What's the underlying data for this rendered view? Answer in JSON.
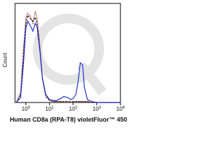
{
  "chart_data": {
    "type": "line",
    "x_label": "Human CD8a (RPA-T8) violetFluor™ 450",
    "y_label": "Count",
    "xscale": "log",
    "xlim": [
      0.35,
      10000
    ],
    "ylim": [
      0,
      100
    ],
    "xticks": [
      {
        "value": 1,
        "label": "10",
        "exponent": "0"
      },
      {
        "value": 10,
        "label": "10",
        "exponent": "1"
      },
      {
        "value": 100,
        "label": "10",
        "exponent": "2"
      },
      {
        "value": 1000,
        "label": "10",
        "exponent": "3"
      },
      {
        "value": 10000,
        "label": "10",
        "exponent": "4"
      }
    ],
    "x": [
      0.4,
      0.6,
      0.8,
      1,
      1.2,
      1.5,
      2,
      2.5,
      3,
      4,
      5,
      7,
      10,
      15,
      20,
      30,
      40,
      60,
      80,
      100,
      130,
      160,
      200,
      250,
      300,
      400,
      600,
      1000,
      3000,
      10000
    ],
    "series": [
      {
        "color": "#1f2fd0",
        "dash": "solid",
        "values": [
          0,
          5,
          40,
          75,
          82,
          78,
          72,
          80,
          76,
          50,
          25,
          8,
          3,
          2,
          2,
          4,
          6,
          5,
          3,
          4,
          8,
          20,
          40,
          38,
          15,
          3,
          1,
          0,
          0,
          0
        ]
      },
      {
        "color": "#8b1a1a",
        "dash": "dotted",
        "values": [
          0,
          10,
          55,
          85,
          90,
          88,
          80,
          92,
          85,
          55,
          25,
          6,
          2,
          1,
          1,
          1,
          1,
          1,
          1,
          1,
          1,
          1,
          1,
          1,
          1,
          1,
          0,
          0,
          0,
          0
        ]
      },
      {
        "color": "#222222",
        "dash": "dashed",
        "values": [
          0,
          8,
          50,
          80,
          88,
          85,
          82,
          86,
          80,
          52,
          24,
          6,
          2,
          1,
          1,
          1,
          1,
          1,
          1,
          1,
          1,
          1,
          1,
          1,
          1,
          1,
          0,
          0,
          0,
          0
        ]
      }
    ]
  }
}
